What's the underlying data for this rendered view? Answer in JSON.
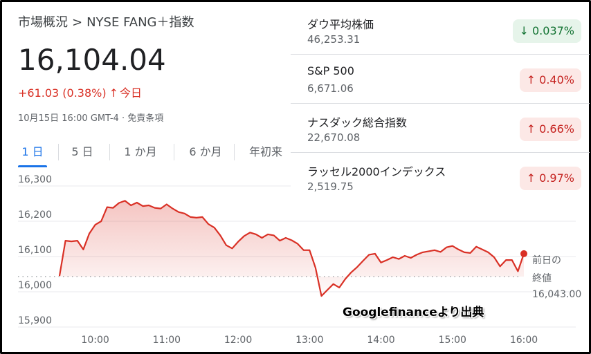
{
  "header": {
    "breadcrumb_parent": "市場概況",
    "breadcrumb_sep": ">",
    "breadcrumb_current": "NYSE FANG＋指数",
    "price": "16,104.04",
    "change_text": "+61.03 (0.38%)",
    "change_arrow": "↑",
    "change_period": "今日",
    "timestamp": "10月15日 16:00 GMT-4 · 免責条項"
  },
  "tabs": [
    {
      "label": "1 日",
      "active": true
    },
    {
      "label": "5 日",
      "active": false
    },
    {
      "label": "1 か月",
      "active": false
    },
    {
      "label": "6 か月",
      "active": false
    },
    {
      "label": "年初来",
      "active": false
    }
  ],
  "indices": [
    {
      "name": "ダウ平均株価",
      "value": "46,253.31",
      "change": "↓ 0.037%",
      "direction": "down"
    },
    {
      "name": "S&P 500",
      "value": "6,671.06",
      "change": "↑ 0.40%",
      "direction": "up"
    },
    {
      "name": "ナスダック総合指数",
      "value": "22,670.08",
      "change": "↑ 0.66%",
      "direction": "up"
    },
    {
      "name": "ラッセル2000インデックス",
      "value": "2,519.75",
      "change": "↑ 0.97%",
      "direction": "up"
    }
  ],
  "chart_data": {
    "type": "area",
    "ylim": [
      15900,
      16300
    ],
    "y_ticks": [
      16300,
      16200,
      16100,
      16000,
      15900
    ],
    "y_tick_labels": [
      "16,300",
      "16,200",
      "16,100",
      "16,000",
      "15,900"
    ],
    "x_ticks": [
      "10:00",
      "11:00",
      "12:00",
      "13:00",
      "14:00",
      "15:00",
      "16:00"
    ],
    "xlim": [
      "9:30",
      "16:00"
    ],
    "line_color": "#d93025",
    "previous_close": 16043.0,
    "previous_close_label_1": "前日の",
    "previous_close_label_2": "終値",
    "previous_close_value": "16,043.00",
    "series": [
      {
        "x": [
          "9:30",
          "9:35",
          "9:40",
          "9:45",
          "9:50",
          "9:55",
          "10:00",
          "10:05",
          "10:10",
          "10:15",
          "10:20",
          "10:25",
          "10:30",
          "10:35",
          "10:40",
          "10:45",
          "10:50",
          "10:55",
          "11:00",
          "11:05",
          "11:10",
          "11:15",
          "11:20",
          "11:25",
          "11:30",
          "11:35",
          "11:40",
          "11:45",
          "11:50",
          "11:55",
          "12:00",
          "12:05",
          "12:10",
          "12:15",
          "12:20",
          "12:25",
          "12:30",
          "12:35",
          "12:40",
          "12:45",
          "12:50",
          "12:55",
          "13:00",
          "13:05",
          "13:10",
          "13:15",
          "13:20",
          "13:25",
          "13:30",
          "13:35",
          "13:40",
          "13:45",
          "13:50",
          "13:55",
          "14:00",
          "14:05",
          "14:10",
          "14:15",
          "14:20",
          "14:25",
          "14:30",
          "14:35",
          "14:40",
          "14:45",
          "14:50",
          "14:55",
          "15:00",
          "15:05",
          "15:10",
          "15:15",
          "15:20",
          "15:25",
          "15:30",
          "15:35",
          "15:40",
          "15:45",
          "15:50",
          "15:55",
          "16:00"
        ],
        "y": [
          16045,
          16145,
          16143,
          16145,
          16120,
          16165,
          16190,
          16200,
          16240,
          16238,
          16252,
          16258,
          16245,
          16253,
          16243,
          16245,
          16238,
          16236,
          16248,
          16236,
          16226,
          16222,
          16212,
          16210,
          16212,
          16192,
          16182,
          16160,
          16132,
          16123,
          16142,
          16158,
          16168,
          16163,
          16153,
          16163,
          16160,
          16145,
          16153,
          16146,
          16136,
          16118,
          16118,
          16068,
          15988,
          16005,
          16022,
          16012,
          16036,
          16055,
          16070,
          16088,
          16105,
          16108,
          16083,
          16090,
          16098,
          16093,
          16102,
          16096,
          16105,
          16112,
          16115,
          16118,
          16113,
          16126,
          16130,
          16120,
          16112,
          16110,
          16128,
          16120,
          16112,
          16098,
          16072,
          16090,
          16090,
          16058,
          16108
        ]
      }
    ]
  },
  "watermark": "Googlefinanceより出典"
}
